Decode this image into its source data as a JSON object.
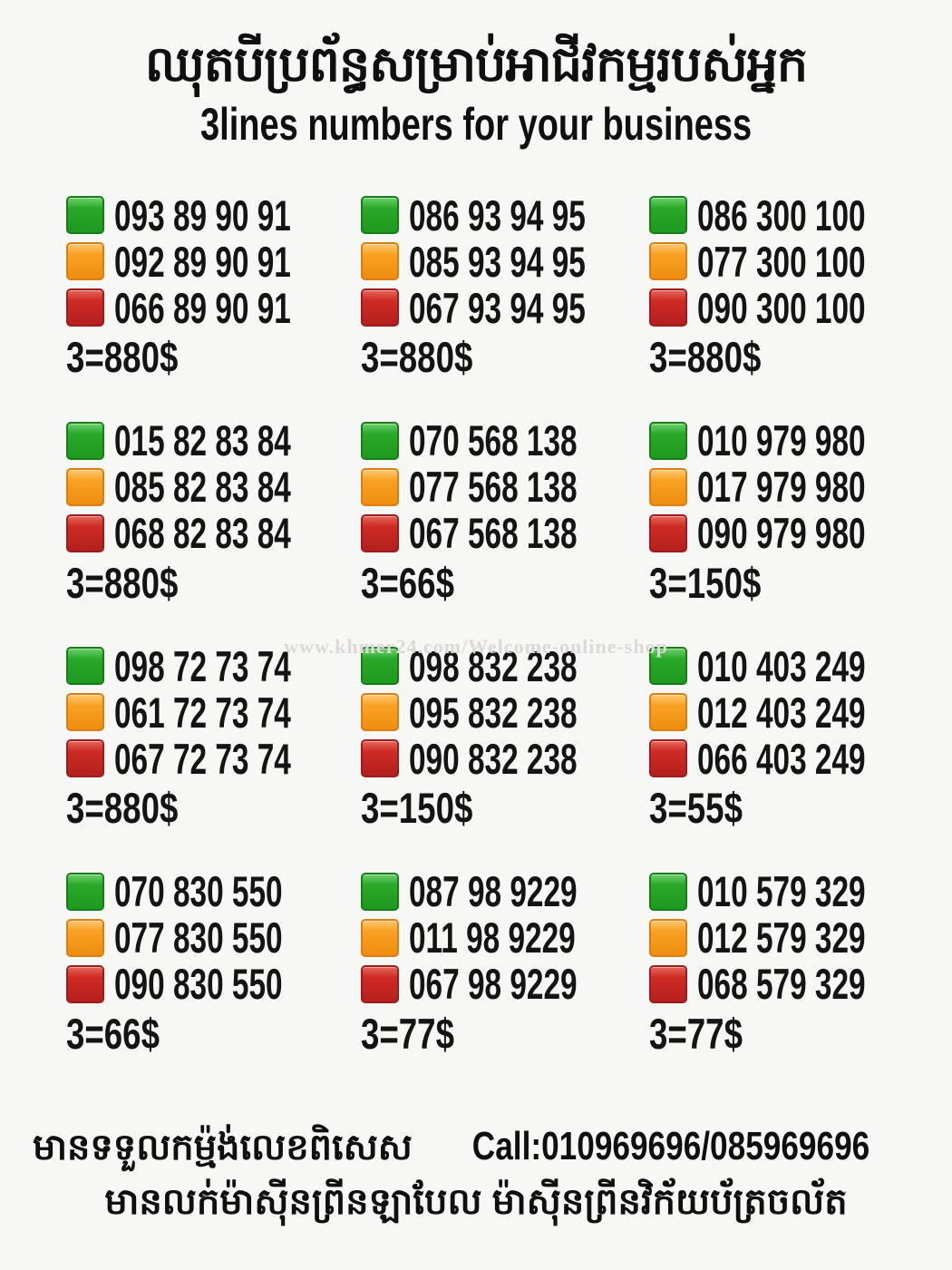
{
  "title": {
    "khmer": "ឈុតបីប្រព័ន្ធសម្រាប់អាជីវកម្មរបស់អ្នក",
    "english": "3lines numbers for your business"
  },
  "watermark": "www.khmer24.com/Welcome-online-shop",
  "colors": {
    "green": "#2aa82a",
    "orange": "#f9a124",
    "red": "#cf2b24",
    "text": "#141414",
    "background": "#f7f7f6"
  },
  "blocks": [
    {
      "price": "3=880$",
      "lines": [
        {
          "color": "green",
          "number": "093 89 90 91"
        },
        {
          "color": "orange",
          "number": "092 89 90 91"
        },
        {
          "color": "red",
          "number": "066 89 90 91"
        }
      ]
    },
    {
      "price": "3=880$",
      "lines": [
        {
          "color": "green",
          "number": "086 93 94 95"
        },
        {
          "color": "orange",
          "number": "085 93 94 95"
        },
        {
          "color": "red",
          "number": "067 93 94 95"
        }
      ]
    },
    {
      "price": "3=880$",
      "lines": [
        {
          "color": "green",
          "number": "086 300 100"
        },
        {
          "color": "orange",
          "number": "077 300 100"
        },
        {
          "color": "red",
          "number": "090 300 100"
        }
      ]
    },
    {
      "price": "3=880$",
      "lines": [
        {
          "color": "green",
          "number": "015 82 83 84"
        },
        {
          "color": "orange",
          "number": "085 82 83 84"
        },
        {
          "color": "red",
          "number": "068 82 83 84"
        }
      ]
    },
    {
      "price": "3=66$",
      "lines": [
        {
          "color": "green",
          "number": "070 568 138"
        },
        {
          "color": "orange",
          "number": "077 568 138"
        },
        {
          "color": "red",
          "number": "067 568 138"
        }
      ]
    },
    {
      "price": "3=150$",
      "lines": [
        {
          "color": "green",
          "number": "010 979 980"
        },
        {
          "color": "orange",
          "number": "017 979 980"
        },
        {
          "color": "red",
          "number": "090 979 980"
        }
      ]
    },
    {
      "price": "3=880$",
      "lines": [
        {
          "color": "green",
          "number": "098 72 73 74"
        },
        {
          "color": "orange",
          "number": "061 72 73 74"
        },
        {
          "color": "red",
          "number": "067 72 73 74"
        }
      ]
    },
    {
      "price": "3=150$",
      "lines": [
        {
          "color": "green",
          "number": "098 832 238"
        },
        {
          "color": "orange",
          "number": "095 832 238"
        },
        {
          "color": "red",
          "number": "090 832 238"
        }
      ]
    },
    {
      "price": "3=55$",
      "lines": [
        {
          "color": "green",
          "number": "010 403 249"
        },
        {
          "color": "orange",
          "number": "012 403 249"
        },
        {
          "color": "red",
          "number": "066 403 249"
        }
      ]
    },
    {
      "price": "3=66$",
      "lines": [
        {
          "color": "green",
          "number": "070 830 550"
        },
        {
          "color": "orange",
          "number": "077 830 550"
        },
        {
          "color": "red",
          "number": "090 830 550"
        }
      ]
    },
    {
      "price": "3=77$",
      "lines": [
        {
          "color": "green",
          "number": "087 98 9229"
        },
        {
          "color": "orange",
          "number": "011 98 9229"
        },
        {
          "color": "red",
          "number": "067 98 9229"
        }
      ]
    },
    {
      "price": "3=77$",
      "lines": [
        {
          "color": "green",
          "number": "010 579 329"
        },
        {
          "color": "orange",
          "number": "012 579 329"
        },
        {
          "color": "red",
          "number": "068 579 329"
        }
      ]
    }
  ],
  "footer": {
    "line1_khmer": "មានទទួលកម្ម៉ង់លេខពិសេស",
    "line1_call": "Call:010969696/085969696",
    "line2_khmer": "មានលក់ម៉ាស៊ីនព្រីនឡាបែល ម៉ាស៊ីនព្រីនវិក័យប័ត្រចល័ត"
  }
}
